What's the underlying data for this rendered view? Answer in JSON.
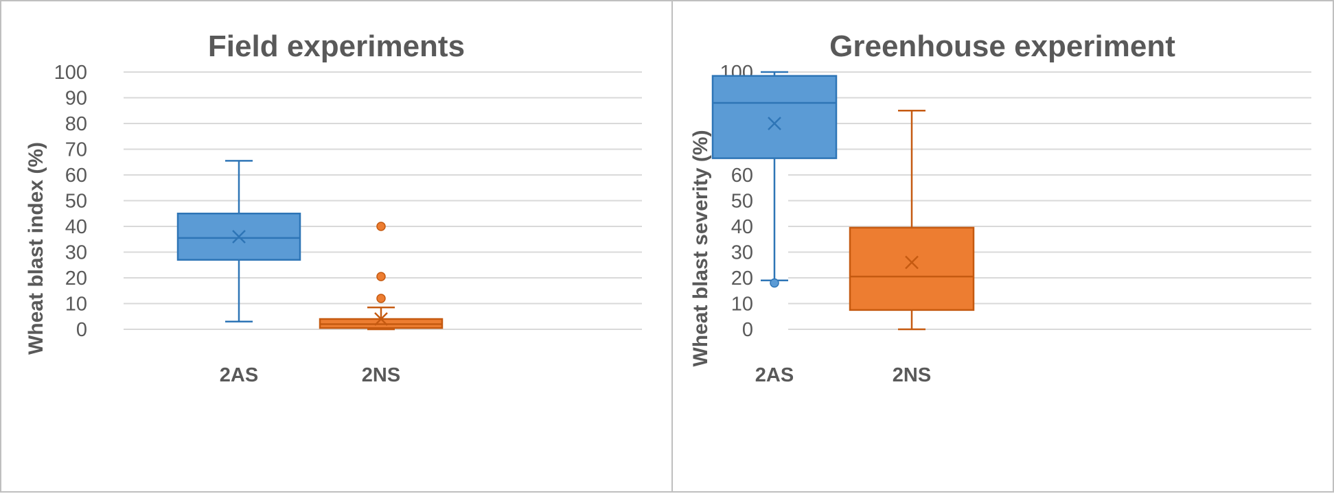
{
  "chart_data": [
    {
      "type": "box",
      "title": "Field experiments",
      "xlabel": "",
      "ylabel": "Wheat blast index (%)",
      "ylim": [
        0,
        100
      ],
      "yticks": [
        "0",
        "10",
        "20",
        "30",
        "40",
        "50",
        "60",
        "70",
        "80",
        "90",
        "100"
      ],
      "grid": true,
      "categories": [
        "2AS",
        "2NS"
      ],
      "series": [
        {
          "category": "2AS",
          "color": "#5b9bd5",
          "edge_color": "#2e75b6",
          "min": 3,
          "q1": 27,
          "median": 35.5,
          "q3": 45,
          "max": 65.5,
          "mean": 36,
          "outliers": []
        },
        {
          "category": "2NS",
          "color": "#ed7d31",
          "edge_color": "#c55a11",
          "min": 0,
          "q1": 0.5,
          "median": 2,
          "q3": 4,
          "max": 8.5,
          "mean": 4,
          "outliers": [
            12,
            20.5,
            40
          ]
        }
      ]
    },
    {
      "type": "box",
      "title": "Greenhouse experiment",
      "xlabel": "",
      "ylabel": "Wheat blast severity (%)",
      "ylim": [
        0,
        100
      ],
      "yticks": [
        "0",
        "10",
        "20",
        "30",
        "40",
        "50",
        "60",
        "70",
        "80",
        "90",
        "100"
      ],
      "grid": true,
      "categories": [
        "2AS",
        "2NS"
      ],
      "series": [
        {
          "category": "2AS",
          "color": "#5b9bd5",
          "edge_color": "#2e75b6",
          "min": 19,
          "q1": 66.5,
          "median": 88,
          "q3": 98.5,
          "max": 100,
          "mean": 80,
          "outliers": [
            18
          ]
        },
        {
          "category": "2NS",
          "color": "#ed7d31",
          "edge_color": "#c55a11",
          "min": 0,
          "q1": 7.5,
          "median": 20.5,
          "q3": 39.5,
          "max": 85,
          "mean": 26,
          "outliers": []
        }
      ]
    }
  ]
}
